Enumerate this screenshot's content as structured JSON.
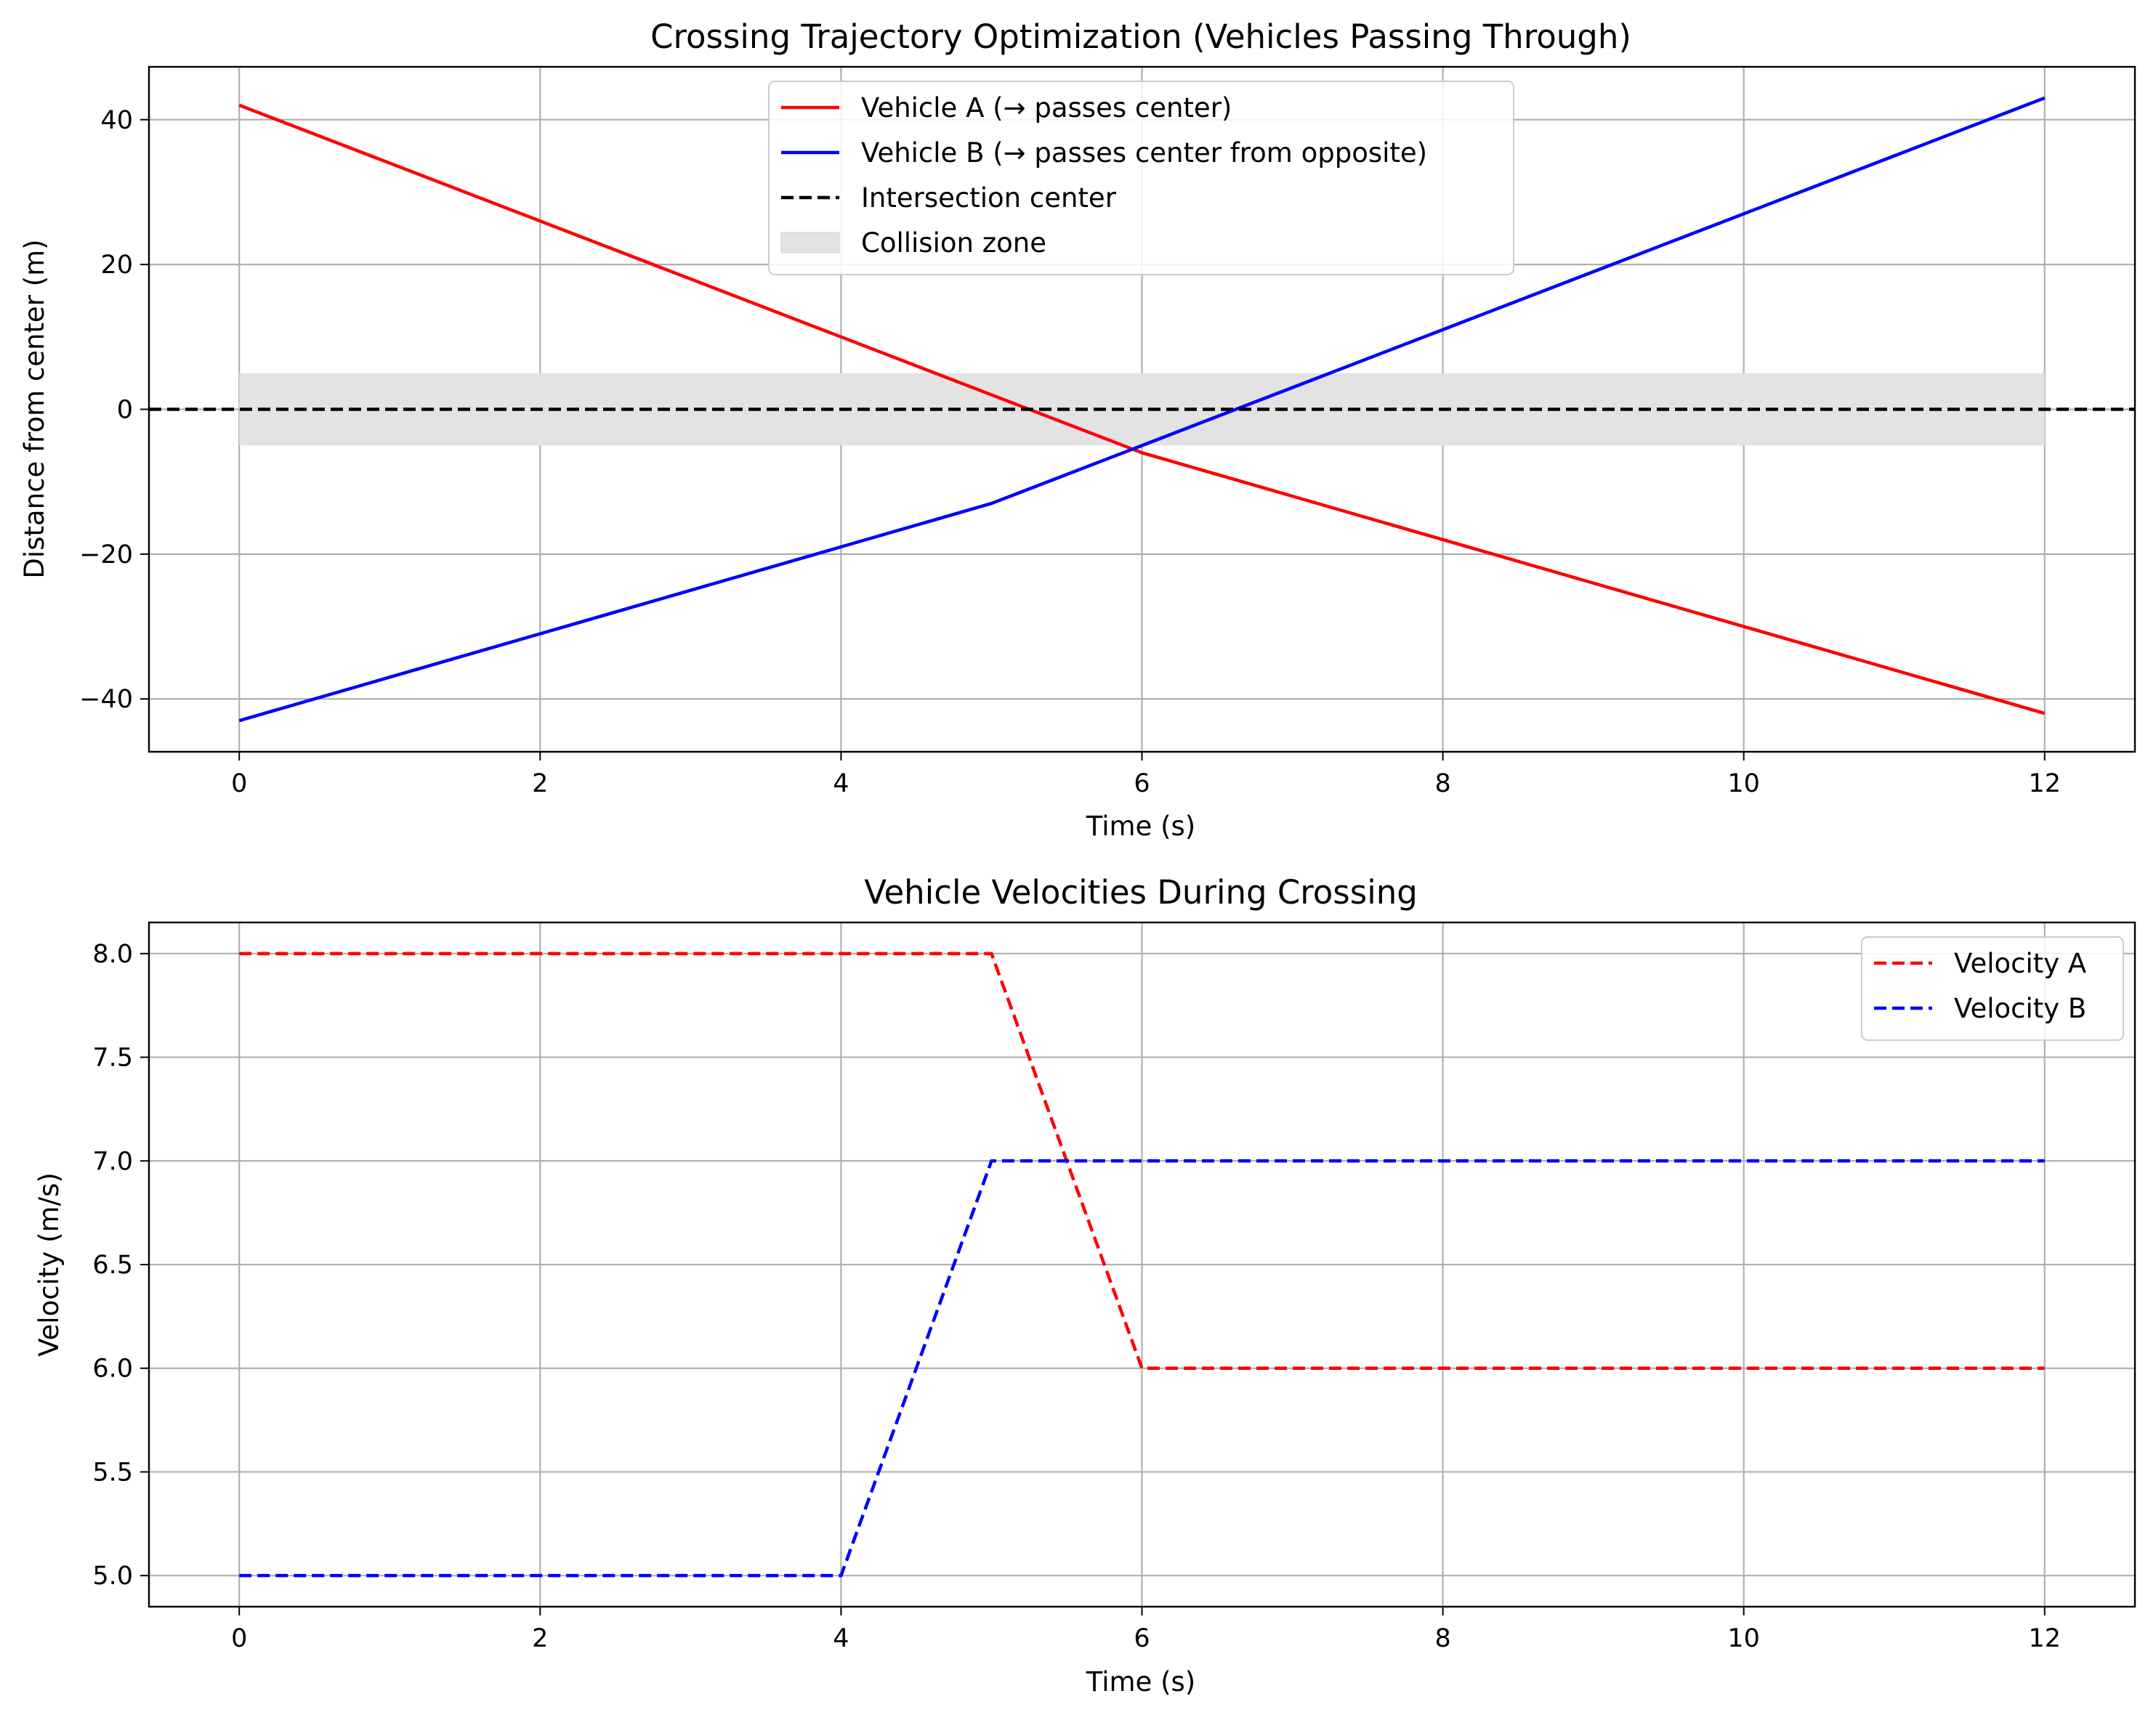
{
  "chart_data": [
    {
      "type": "line",
      "title": "Crossing Trajectory Optimization (Vehicles Passing Through)",
      "xlabel": "Time (s)",
      "ylabel": "Distance from center (m)",
      "xlim": [
        -0.6,
        12.6
      ],
      "ylim": [
        -47.3,
        47.3
      ],
      "xticks": [
        0,
        2,
        4,
        6,
        8,
        10,
        12
      ],
      "yticks": [
        40,
        20,
        0,
        -20,
        -40
      ],
      "ytick_labels": [
        "40",
        "20",
        "0",
        "−20",
        "−40"
      ],
      "xtick_labels": [
        "0",
        "2",
        "4",
        "6",
        "8",
        "10",
        "12"
      ],
      "grid": true,
      "legend_position": "upper-center",
      "series": [
        {
          "name": "Vehicle A (→ passes center)",
          "color": "#ff0000",
          "style": "solid",
          "x": [
            0,
            1,
            2,
            3,
            4,
            5,
            6,
            7,
            8,
            9,
            10,
            11,
            12
          ],
          "y": [
            42,
            34,
            26,
            18,
            10,
            2,
            -6,
            -12,
            -18,
            -24,
            -30,
            -36,
            -42
          ]
        },
        {
          "name": "Vehicle B (→ passes center from opposite)",
          "color": "#0000ff",
          "style": "solid",
          "x": [
            0,
            1,
            2,
            3,
            4,
            5,
            6,
            7,
            8,
            9,
            10,
            11,
            12
          ],
          "y": [
            -43,
            -37,
            -31,
            -25,
            -19,
            -13,
            -5,
            3,
            11,
            19,
            27,
            35,
            43
          ]
        },
        {
          "name": "Intersection center",
          "color": "#000000",
          "style": "dashed",
          "hline": 0
        }
      ],
      "bands": [
        {
          "name": "Collision zone",
          "color": "#e3e3e3",
          "x": [
            0,
            12
          ],
          "y": [
            -5,
            5
          ]
        }
      ]
    },
    {
      "type": "line",
      "title": "Vehicle Velocities During Crossing",
      "xlabel": "Time (s)",
      "ylabel": "Velocity (m/s)",
      "xlim": [
        -0.6,
        12.6
      ],
      "ylim": [
        4.85,
        8.15
      ],
      "xticks": [
        0,
        2,
        4,
        6,
        8,
        10,
        12
      ],
      "xtick_labels": [
        "0",
        "2",
        "4",
        "6",
        "8",
        "10",
        "12"
      ],
      "yticks": [
        8.0,
        7.5,
        7.0,
        6.5,
        6.0,
        5.5,
        5.0
      ],
      "ytick_labels": [
        "8.0",
        "7.5",
        "7.0",
        "6.5",
        "6.0",
        "5.5",
        "5.0"
      ],
      "grid": true,
      "legend_position": "upper-right",
      "series": [
        {
          "name": "Velocity A",
          "color": "#ff0000",
          "style": "dashed",
          "x": [
            0,
            1,
            2,
            3,
            4,
            5,
            6,
            7,
            8,
            9,
            10,
            11,
            12
          ],
          "y": [
            8,
            8,
            8,
            8,
            8,
            8,
            6,
            6,
            6,
            6,
            6,
            6,
            6
          ]
        },
        {
          "name": "Velocity B",
          "color": "#0000ff",
          "style": "dashed",
          "x": [
            0,
            1,
            2,
            3,
            4,
            5,
            6,
            7,
            8,
            9,
            10,
            11,
            12
          ],
          "y": [
            5,
            5,
            5,
            5,
            5,
            7,
            7,
            7,
            7,
            7,
            7,
            7,
            7
          ]
        }
      ]
    }
  ]
}
